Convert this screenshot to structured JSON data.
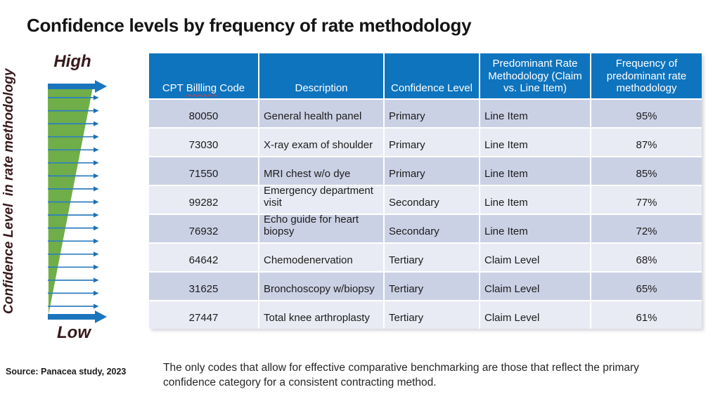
{
  "slide": {
    "title": "Confidence levels by frequency of rate methodology",
    "source_note": "Source: Panacea study, 2023",
    "caption": "The only codes that allow for effective comparative benchmarking are those that reflect the primary confidence category for a consistent contracting method."
  },
  "funnel": {
    "top_label": "High",
    "bottom_label": "Low",
    "axis_label": "Confidence Level  in rate methodology",
    "tick_count": 17,
    "colors": {
      "triangle_green": "#6FAE48",
      "arrow_blue": "#1B75BC",
      "tick_blue": "#2E7FC0",
      "label_maroon": "#38181B"
    }
  },
  "table": {
    "header": {
      "col1_parts": [
        "CPT ",
        "Billling",
        " Code"
      ],
      "columns": [
        "CPT Billling Code",
        "Description",
        "Confidence Level",
        "Predominant Rate Methodology (Claim vs. Line Item)",
        "Frequency of predominant rate methodology"
      ]
    },
    "rows": [
      {
        "code": "80050",
        "description": "General health panel",
        "confidence": "Primary",
        "methodology": "Line Item",
        "frequency": "95%"
      },
      {
        "code": "73030",
        "description": "X-ray exam of shoulder",
        "confidence": "Primary",
        "methodology": "Line Item",
        "frequency": "87%"
      },
      {
        "code": "71550",
        "description": "MRI chest w/o dye",
        "confidence": "Primary",
        "methodology": "Line Item",
        "frequency": "85%"
      },
      {
        "code": "99282",
        "description": "Emergency department visit",
        "confidence": "Secondary",
        "methodology": "Line Item",
        "frequency": "77%"
      },
      {
        "code": "76932",
        "description": "Echo guide for heart biopsy",
        "confidence": "Secondary",
        "methodology": "Line Item",
        "frequency": "72%"
      },
      {
        "code": "64642",
        "description": "Chemodenervation",
        "confidence": "Tertiary",
        "methodology": "Claim Level",
        "frequency": "68%"
      },
      {
        "code": "31625",
        "description": "Bronchoscopy w/biopsy",
        "confidence": "Tertiary",
        "methodology": "Claim Level",
        "frequency": "65%"
      },
      {
        "code": "27447",
        "description": "Total knee arthroplasty",
        "confidence": "Tertiary",
        "methodology": "Claim Level",
        "frequency": "61%"
      }
    ],
    "colors": {
      "header_bg": "#0E74BE",
      "header_text": "#FFFFFF",
      "row_odd": "#CBD1E5",
      "row_even": "#E9EBF4"
    }
  }
}
